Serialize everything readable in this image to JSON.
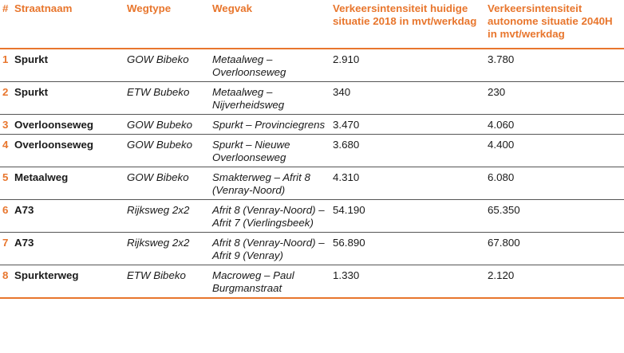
{
  "table": {
    "headers": {
      "num": "#",
      "straatnaam": "Straatnaam",
      "wegtype": "Wegtype",
      "wegvak": "Wegvak",
      "intensiteit_2018": "Verkeersintensiteit huidige situatie 2018 in mvt/werkdag",
      "intensiteit_2040": "Verkeersintensiteit autonome situatie 2040H in mvt/werkdag"
    },
    "rows": [
      {
        "num": "1",
        "straatnaam": "Spurkt",
        "wegtype": "GOW Bibeko",
        "wegvak": "Metaalweg – Overloonseweg",
        "i2018": "2.910",
        "i2040": "3.780"
      },
      {
        "num": "2",
        "straatnaam": "Spurkt",
        "wegtype": "ETW Bubeko",
        "wegvak": "Metaalweg – Nijverheidsweg",
        "i2018": "340",
        "i2040": "230"
      },
      {
        "num": "3",
        "straatnaam": "Overloonseweg",
        "wegtype": "GOW Bubeko",
        "wegvak": "Spurkt – Provinciegrens",
        "i2018": "3.470",
        "i2040": "4.060"
      },
      {
        "num": "4",
        "straatnaam": "Overloonseweg",
        "wegtype": "GOW Bubeko",
        "wegvak": "Spurkt – Nieuwe Overloonseweg",
        "i2018": "3.680",
        "i2040": "4.400"
      },
      {
        "num": "5",
        "straatnaam": "Metaalweg",
        "wegtype": "GOW Bibeko",
        "wegvak": "Smakterweg – Afrit 8 (Venray-Noord)",
        "i2018": "4.310",
        "i2040": "6.080"
      },
      {
        "num": "6",
        "straatnaam": "A73",
        "wegtype": "Rijksweg 2x2",
        "wegvak": "Afrit 8 (Venray-Noord) – Afrit 7 (Vierlingsbeek)",
        "i2018": "54.190",
        "i2040": "65.350"
      },
      {
        "num": "7",
        "straatnaam": "A73",
        "wegtype": "Rijksweg 2x2",
        "wegvak": "Afrit 8 (Venray-Noord) – Afrit 9 (Venray)",
        "i2018": "56.890",
        "i2040": "67.800"
      },
      {
        "num": "8",
        "straatnaam": "Spurkterweg",
        "wegtype": "ETW Bibeko",
        "wegvak": "Macroweg – Paul Burgmanstraat",
        "i2018": "1.330",
        "i2040": "2.120"
      }
    ]
  }
}
